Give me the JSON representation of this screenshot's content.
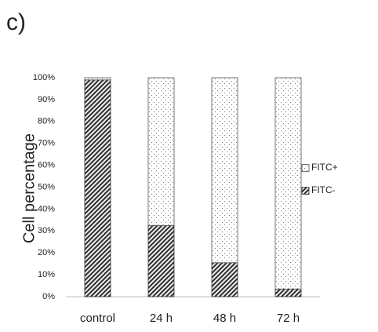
{
  "panel_label": "c)",
  "chart_data": {
    "type": "stacked_bar",
    "ylabel": "Cell percentage",
    "categories": [
      "control",
      "24 h",
      "48 h",
      "72 h"
    ],
    "series": [
      {
        "name": "FITC-",
        "color": "#333333",
        "pattern": "hatch",
        "values": [
          99,
          32.5,
          15.5,
          3.5
        ]
      },
      {
        "name": "FITC+",
        "color": "#555555",
        "pattern": "dots",
        "values": [
          1,
          67.5,
          84.5,
          96.5
        ]
      }
    ],
    "ylim": [
      0,
      100
    ],
    "yticks": [
      {
        "value": 0,
        "label": "0%"
      },
      {
        "value": 10,
        "label": "10%"
      },
      {
        "value": 20,
        "label": "20%"
      },
      {
        "value": 30,
        "label": "30%"
      },
      {
        "value": 40,
        "label": "40%"
      },
      {
        "value": 50,
        "label": "50%"
      },
      {
        "value": 60,
        "label": "60%"
      },
      {
        "value": 70,
        "label": "70%"
      },
      {
        "value": 80,
        "label": "80%"
      },
      {
        "value": 90,
        "label": "90%"
      },
      {
        "value": 100,
        "label": "100%"
      }
    ],
    "legend": "right"
  }
}
